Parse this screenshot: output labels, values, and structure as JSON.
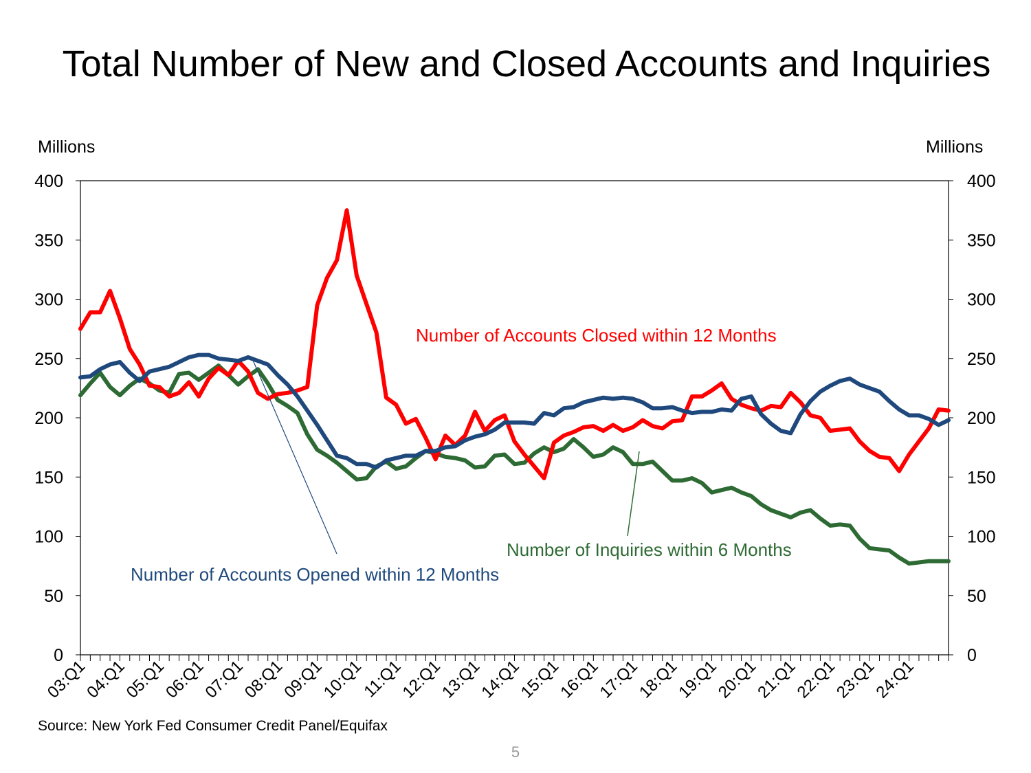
{
  "page": {
    "title": "Total Number of New and Closed Accounts and Inquiries",
    "unit_left": "Millions",
    "unit_right": "Millions",
    "source": "Source: New York Fed Consumer Credit Panel/Equifax",
    "page_number": "5"
  },
  "chart_data": {
    "type": "line",
    "title": "Total Number of New and Closed Accounts and Inquiries",
    "ylabel": "Millions",
    "y2label": "Millions",
    "ylim": [
      0,
      400
    ],
    "y2lim": [
      0,
      400
    ],
    "yticks": [
      0,
      50,
      100,
      150,
      200,
      250,
      300,
      350,
      400
    ],
    "x_tick_labels": [
      "03:Q1",
      "04:Q1",
      "05:Q1",
      "06:Q1",
      "07:Q1",
      "08:Q1",
      "09:Q1",
      "10:Q1",
      "11:Q1",
      "12:Q1",
      "13:Q1",
      "14:Q1",
      "15:Q1",
      "16:Q1",
      "17:Q1",
      "18:Q1",
      "19:Q1",
      "20:Q1",
      "21:Q1",
      "22:Q1",
      "23:Q1",
      "24:Q1"
    ],
    "x_start": "2003:Q1",
    "x_end": "2024:Q4",
    "grid": false,
    "series": [
      {
        "name": "Number of Accounts Closed within 12 Months",
        "color": "#FF0000",
        "values": [
          275,
          289,
          289,
          307,
          284,
          258,
          245,
          227,
          226,
          218,
          221,
          230,
          218,
          233,
          242,
          236,
          248,
          239,
          221,
          216,
          220,
          221,
          223,
          226,
          295,
          318,
          333,
          375,
          320,
          296,
          272,
          217,
          211,
          195,
          199,
          183,
          165,
          185,
          177,
          185,
          205,
          189,
          198,
          202,
          180,
          169,
          159,
          149,
          179,
          185,
          188,
          192,
          193,
          189,
          194,
          189,
          192,
          198,
          193,
          191,
          197,
          198,
          218,
          218,
          223,
          229,
          216,
          211,
          208,
          206,
          210,
          209,
          221,
          213,
          202,
          200,
          189,
          190,
          191,
          180,
          172,
          167,
          166,
          155,
          169,
          180,
          191,
          207,
          206
        ]
      },
      {
        "name": "Number of Accounts Opened within 12 Months",
        "color": "#1F497D",
        "values": [
          234,
          235,
          241,
          245,
          247,
          238,
          231,
          239,
          241,
          243,
          247,
          251,
          253,
          253,
          250,
          249,
          248,
          251,
          248,
          245,
          236,
          228,
          218,
          206,
          194,
          181,
          168,
          166,
          161,
          161,
          158,
          164,
          166,
          168,
          168,
          172,
          172,
          175,
          176,
          181,
          184,
          186,
          190,
          196,
          196,
          196,
          195,
          204,
          202,
          208,
          209,
          213,
          215,
          217,
          216,
          217,
          216,
          213,
          208,
          208,
          209,
          206,
          204,
          205,
          205,
          207,
          206,
          216,
          218,
          203,
          195,
          189,
          187,
          203,
          214,
          222,
          227,
          231,
          233,
          228,
          225,
          222,
          214,
          207,
          202,
          202,
          199,
          194,
          198
        ]
      },
      {
        "name": "Number of Inquiries within 6 Months",
        "color": "#2E6B34",
        "values": [
          219,
          229,
          238,
          226,
          219,
          227,
          233,
          229,
          223,
          221,
          237,
          238,
          232,
          238,
          244,
          236,
          228,
          235,
          241,
          229,
          215,
          210,
          204,
          186,
          173,
          168,
          162,
          155,
          148,
          149,
          159,
          163,
          157,
          159,
          166,
          172,
          170,
          167,
          166,
          164,
          158,
          159,
          168,
          169,
          161,
          162,
          170,
          175,
          171,
          174,
          182,
          175,
          167,
          169,
          175,
          171,
          161,
          161,
          163,
          155,
          147,
          147,
          149,
          145,
          137,
          139,
          141,
          137,
          134,
          127,
          122,
          119,
          116,
          120,
          122,
          115,
          109,
          110,
          109,
          98,
          90,
          89,
          88,
          82,
          77,
          78,
          79,
          79,
          79
        ]
      }
    ],
    "annotations": [
      {
        "text": "Number of Accounts Closed within 12 Months",
        "color": "#FF0000"
      },
      {
        "text": "Number of Accounts Opened within 12 Months",
        "color": "#1F497D"
      },
      {
        "text": "Number of Inquiries within 6 Months",
        "color": "#2E6B34"
      }
    ]
  }
}
